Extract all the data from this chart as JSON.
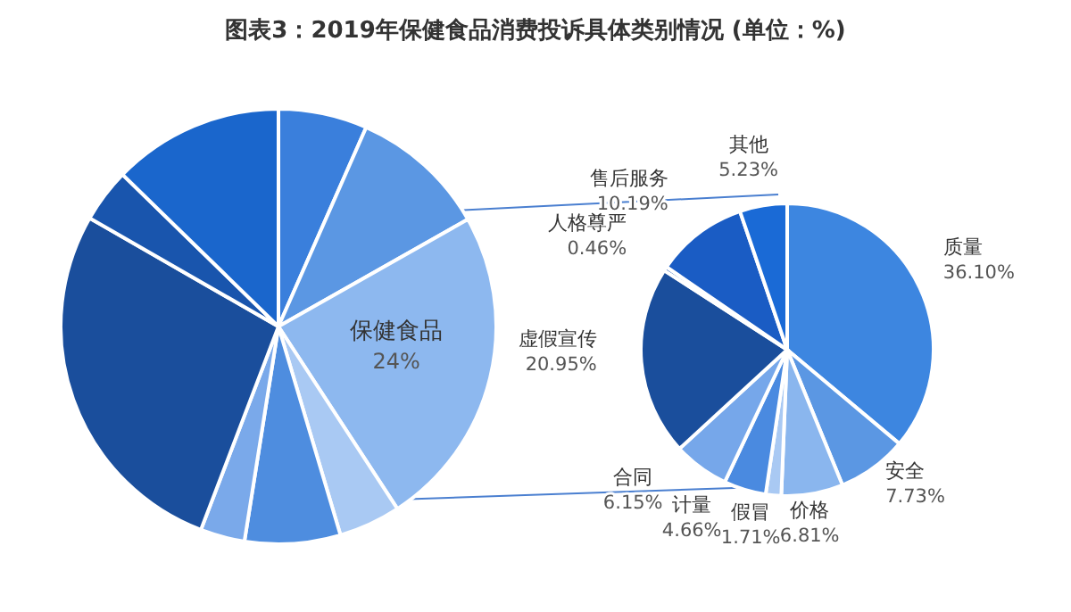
{
  "chart_data": [
    {
      "type": "pie",
      "title": "图表3：2019年保健食品消费投诉具体类别情况 (单位：%)",
      "categories": [
        null,
        null,
        "保健食品",
        null,
        null,
        null,
        null,
        null,
        null
      ],
      "values": [
        6.6,
        10.2,
        24,
        4.6,
        7.1,
        3.3,
        27.5,
        4.0,
        12.7
      ],
      "value_labels": [
        null,
        null,
        "24%",
        null,
        null,
        null,
        null,
        null,
        null
      ],
      "colors": [
        "#3a7fdc",
        "#5b97e3",
        "#8db8ef",
        "#a9c9f3",
        "#4e8ddf",
        "#7aa9ea",
        "#1a4e9c",
        "#1955ad",
        "#1a66cc"
      ],
      "legend": false
    },
    {
      "type": "pie",
      "categories": [
        "质量",
        "安全",
        "价格",
        "假冒",
        "计量",
        "合同",
        "虚假宣传",
        "人格尊严",
        "售后服务",
        "其他"
      ],
      "values": [
        36.1,
        7.73,
        6.81,
        1.71,
        4.66,
        6.15,
        20.95,
        0.46,
        10.19,
        5.23
      ],
      "value_labels": [
        "36.10%",
        "7.73%",
        "6.81%",
        "1.71%",
        "4.66%",
        "6.15%",
        "20.95%",
        "0.46%",
        "10.19%",
        "5.23%"
      ],
      "colors": [
        "#3d86e0",
        "#5b97e3",
        "#8ab6ee",
        "#a9c9f3",
        "#4a8ae0",
        "#76a7ea",
        "#1a4e9c",
        "#2a62b8",
        "#1a5cc4",
        "#1a6ad6"
      ],
      "legend": false
    }
  ]
}
